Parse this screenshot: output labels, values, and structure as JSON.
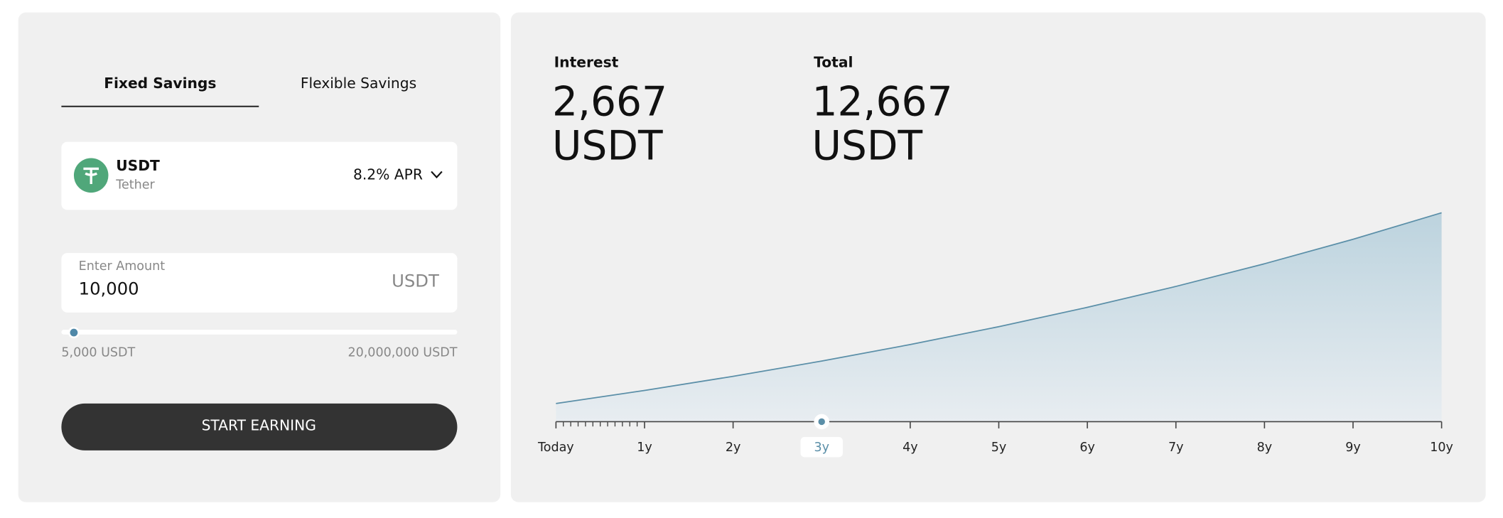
{
  "tabs": [
    "Fixed Savings",
    "Flexible Savings"
  ],
  "asset": {
    "symbol": "USDT",
    "name": "Tether",
    "apr": "8.2% APR"
  },
  "amount": {
    "label": "Enter Amount",
    "value": "10,000",
    "unit": "USDT",
    "min_label": "5,000 USDT",
    "max_label": "20,000,000 USDT"
  },
  "button": "START EARNING",
  "summary": {
    "interest": {
      "label": "Interest",
      "value": "2,667",
      "unit": "USDT"
    },
    "total": {
      "label": "Total",
      "value": "12,667",
      "unit": "USDT"
    }
  },
  "chart_data": {
    "type": "area",
    "categories": [
      "Today",
      "1y",
      "2y",
      "3y",
      "4y",
      "5y",
      "6y",
      "7y",
      "8y",
      "9y",
      "10y"
    ],
    "values": [
      10000,
      10820,
      11707,
      12667,
      13706,
      14830,
      16046,
      17361,
      18785,
      20325,
      21992
    ],
    "ylim": [
      8855,
      23318
    ],
    "color": "#5b8fa8",
    "selected_index": 3
  }
}
